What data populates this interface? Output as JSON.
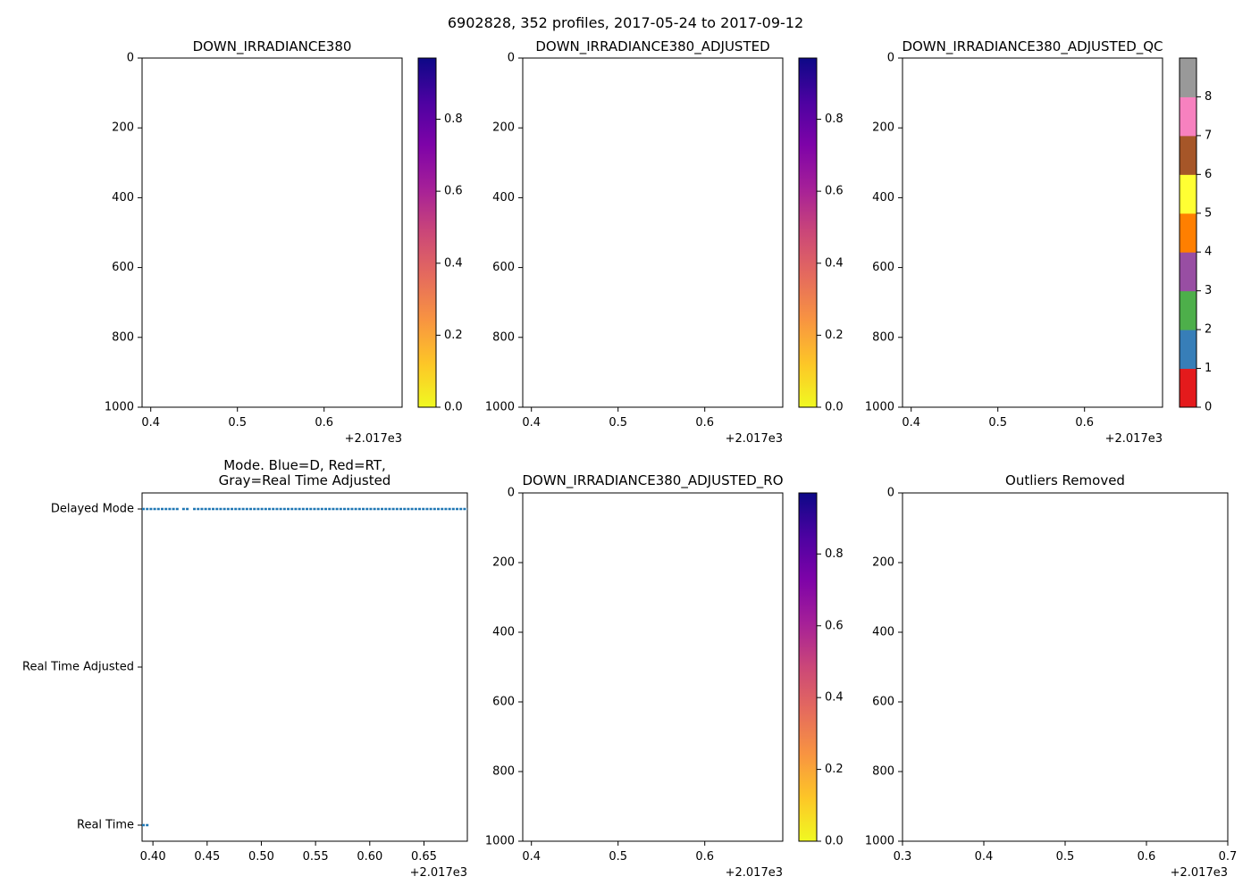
{
  "figure": {
    "suptitle": "6902828, 352 profiles, 2017-05-24 to 2017-09-12"
  },
  "colors": {
    "colormap": [
      "#f0f921",
      "#fdc627",
      "#f89441",
      "#e56b5d",
      "#cb4778",
      "#a62098",
      "#7e03a8",
      "#4c02a1",
      "#0d0887"
    ],
    "mode_series": "#1f77b4",
    "qc": [
      "#e41a1c",
      "#377eb8",
      "#4daf4a",
      "#984ea3",
      "#ff7f00",
      "#ffff33",
      "#a65628",
      "#f781bf",
      "#999999"
    ]
  },
  "chart_data": [
    {
      "id": "p1",
      "type": "heatmap",
      "title": "DOWN_IRRADIANCE380",
      "xlim": [
        0.39,
        0.69
      ],
      "xticks": [
        0.4,
        0.5,
        0.6
      ],
      "xtick_labels": [
        "0.4",
        "0.5",
        "0.6"
      ],
      "offset": "+2.017e3",
      "ylim": [
        1000,
        0
      ],
      "yticks": [
        0,
        200,
        400,
        600,
        800,
        1000
      ],
      "ytick_labels": [
        "0",
        "200",
        "400",
        "600",
        "800",
        "1000"
      ],
      "colorbar": {
        "kind": "continuous",
        "range": [
          0,
          0.97
        ],
        "ticks": [
          0.0,
          0.2,
          0.4,
          0.6,
          0.8
        ],
        "tick_labels": [
          "0.0",
          "0.2",
          "0.4",
          "0.6",
          "0.8"
        ]
      }
    },
    {
      "id": "p2",
      "type": "heatmap",
      "title": "DOWN_IRRADIANCE380_ADJUSTED",
      "xlim": [
        0.39,
        0.69
      ],
      "xticks": [
        0.4,
        0.5,
        0.6
      ],
      "xtick_labels": [
        "0.4",
        "0.5",
        "0.6"
      ],
      "offset": "+2.017e3",
      "ylim": [
        1000,
        0
      ],
      "yticks": [
        0,
        200,
        400,
        600,
        800,
        1000
      ],
      "ytick_labels": [
        "0",
        "200",
        "400",
        "600",
        "800",
        "1000"
      ],
      "colorbar": {
        "kind": "continuous",
        "range": [
          0,
          0.97
        ],
        "ticks": [
          0.0,
          0.2,
          0.4,
          0.6,
          0.8
        ],
        "tick_labels": [
          "0.0",
          "0.2",
          "0.4",
          "0.6",
          "0.8"
        ]
      }
    },
    {
      "id": "p3",
      "type": "heatmap",
      "title": "DOWN_IRRADIANCE380_ADJUSTED_QC",
      "xlim": [
        0.39,
        0.69
      ],
      "xticks": [
        0.4,
        0.5,
        0.6
      ],
      "xtick_labels": [
        "0.4",
        "0.5",
        "0.6"
      ],
      "offset": "+2.017e3",
      "ylim": [
        1000,
        0
      ],
      "yticks": [
        0,
        200,
        400,
        600,
        800,
        1000
      ],
      "ytick_labels": [
        "0",
        "200",
        "400",
        "600",
        "800",
        "1000"
      ],
      "colorbar": {
        "kind": "discrete",
        "range": [
          0,
          9
        ],
        "ticks": [
          0,
          1,
          2,
          3,
          4,
          5,
          6,
          7,
          8
        ],
        "tick_labels": [
          "0",
          "1",
          "2",
          "3",
          "4",
          "5",
          "6",
          "7",
          "8"
        ]
      }
    },
    {
      "id": "p4",
      "type": "scatter",
      "title": "Mode. Blue=D, Red=RT,\nGray=Real Time Adjusted",
      "xlim": [
        0.39,
        0.69
      ],
      "xticks": [
        0.4,
        0.45,
        0.5,
        0.55,
        0.6,
        0.65
      ],
      "xtick_labels": [
        "0.40",
        "0.45",
        "0.50",
        "0.55",
        "0.60",
        "0.65"
      ],
      "offset": "+2.017e3",
      "categories": [
        "Delayed Mode",
        "Real Time Adjusted",
        "Real Time"
      ],
      "series": [
        {
          "name": "Delayed Mode",
          "category": "Delayed Mode",
          "x_start": 0.39,
          "x_end": 0.69,
          "gaps": [
            [
              0.424,
              0.427
            ],
            [
              0.434,
              0.437
            ]
          ]
        },
        {
          "name": "Real Time",
          "category": "Real Time",
          "x_start": 0.39,
          "x_end": 0.396,
          "gaps": []
        }
      ]
    },
    {
      "id": "p5",
      "type": "heatmap",
      "title": "DOWN_IRRADIANCE380_ADJUSTED_RO",
      "xlim": [
        0.39,
        0.69
      ],
      "xticks": [
        0.4,
        0.5,
        0.6
      ],
      "xtick_labels": [
        "0.4",
        "0.5",
        "0.6"
      ],
      "offset": "+2.017e3",
      "ylim": [
        1000,
        0
      ],
      "yticks": [
        0,
        200,
        400,
        600,
        800,
        1000
      ],
      "ytick_labels": [
        "0",
        "200",
        "400",
        "600",
        "800",
        "1000"
      ],
      "colorbar": {
        "kind": "continuous",
        "range": [
          0,
          0.97
        ],
        "ticks": [
          0.0,
          0.2,
          0.4,
          0.6,
          0.8
        ],
        "tick_labels": [
          "0.0",
          "0.2",
          "0.4",
          "0.6",
          "0.8"
        ]
      }
    },
    {
      "id": "p6",
      "type": "heatmap",
      "title": "Outliers Removed",
      "xlim": [
        0.3,
        0.7
      ],
      "xticks": [
        0.3,
        0.4,
        0.5,
        0.6,
        0.7
      ],
      "xtick_labels": [
        "0.3",
        "0.4",
        "0.5",
        "0.6",
        "0.7"
      ],
      "offset": "+2.017e3",
      "ylim": [
        1000,
        0
      ],
      "yticks": [
        0,
        200,
        400,
        600,
        800,
        1000
      ],
      "ytick_labels": [
        "0",
        "200",
        "400",
        "600",
        "800",
        "1000"
      ]
    }
  ]
}
